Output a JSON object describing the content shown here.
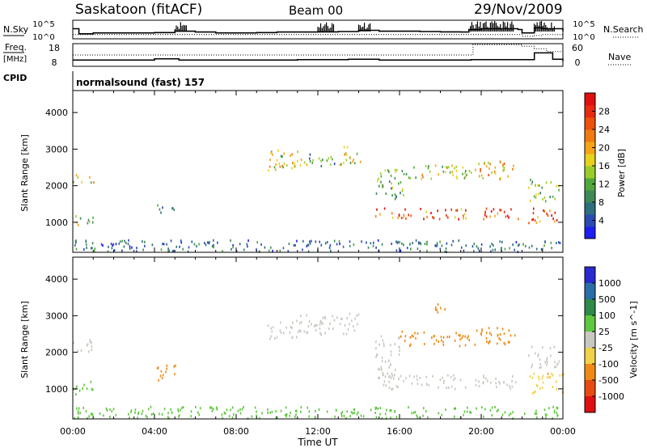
{
  "header": {
    "station": "Saskatoon (fitACF)",
    "beam": "Beam 00",
    "date": "29/Nov/2009",
    "nsky_label": "N.Sky",
    "nsearch_label": "N.Search",
    "freq_label": "Freq.",
    "freq_unit": "[MHz]",
    "nave_label": "Nave",
    "cpid_label": "CPID",
    "cpid_value": "normalsound (fast) 157"
  },
  "chart_data": [
    {
      "type": "line",
      "name": "noise panel",
      "yaxis_left": {
        "ticks": [
          "10^5",
          "10^0"
        ]
      },
      "yaxis_right": {
        "ticks": [
          "10^5",
          "10^0"
        ]
      },
      "legend": [
        "N.Sky",
        "N.Search"
      ],
      "x_hours": [
        0,
        0.3,
        1,
        2,
        3,
        4,
        5,
        6,
        7,
        8,
        9,
        10,
        11,
        12,
        13,
        14,
        15,
        16,
        17,
        18,
        19,
        19.4,
        20,
        21,
        21.8,
        22,
        22.6,
        23,
        24
      ],
      "nsky_level": [
        0.55,
        0.25,
        0.3,
        0.3,
        0.3,
        0.32,
        0.4,
        0.35,
        0.3,
        0.3,
        0.32,
        0.35,
        0.35,
        0.36,
        0.38,
        0.45,
        0.4,
        0.4,
        0.38,
        0.36,
        0.35,
        0.5,
        0.55,
        0.55,
        0.5,
        0.3,
        0.6,
        0.55,
        0.4
      ],
      "nsearch_level": [
        0.2,
        0.2,
        0.2,
        0.2,
        0.2,
        0.2,
        0.2,
        0.2,
        0.2,
        0.2,
        0.2,
        0.2,
        0.2,
        0.2,
        0.2,
        0.2,
        0.2,
        0.2,
        0.2,
        0.2,
        0.2,
        0.2,
        0.2,
        0.2,
        0.2,
        0.1,
        0.15,
        0.2,
        0.2
      ]
    },
    {
      "type": "line",
      "name": "frequency / nave panel",
      "yaxis_left": {
        "label": "Freq. [MHz]",
        "ticks": [
          18,
          8
        ],
        "range": [
          8,
          18
        ]
      },
      "yaxis_right": {
        "label": "Nave",
        "ticks": [
          60,
          0
        ],
        "range": [
          0,
          60
        ]
      },
      "freq_mhz": [
        [
          0,
          10.6
        ],
        [
          3,
          10.6
        ],
        [
          4,
          11.2
        ],
        [
          5.2,
          10.6
        ],
        [
          11,
          10.8
        ],
        [
          13.5,
          11.0
        ],
        [
          15,
          10.6
        ],
        [
          19.5,
          10.8
        ],
        [
          21.8,
          10.8
        ],
        [
          22.6,
          14.0
        ],
        [
          23.5,
          11.0
        ],
        [
          24,
          10.0
        ]
      ],
      "nave": [
        [
          0,
          30
        ],
        [
          19.5,
          30
        ],
        [
          19.6,
          60
        ],
        [
          21.8,
          60
        ],
        [
          22.0,
          55
        ],
        [
          22.6,
          48
        ],
        [
          23.2,
          40
        ],
        [
          24,
          35
        ]
      ]
    },
    {
      "type": "heatmap",
      "name": "power",
      "title": "Power [dB]",
      "xlabel": "Time UT",
      "ylabel": "Slant Range [km]",
      "xticks": [
        "00:00",
        "04:00",
        "08:00",
        "12:00",
        "16:00",
        "20:00",
        "00:00"
      ],
      "yticks": [
        1000,
        2000,
        3000,
        4000
      ],
      "xlim_hours": [
        0,
        24
      ],
      "ylim_km": [
        180,
        4600
      ],
      "colorbar": {
        "ticks": [
          4,
          8,
          12,
          16,
          20,
          24,
          28
        ],
        "range": [
          0,
          32
        ],
        "colors": [
          "#1e1ef0",
          "#2a4ab4",
          "#2e6e7e",
          "#3e8a56",
          "#50a83a",
          "#9ccc2a",
          "#e6d21c",
          "#f4a414",
          "#f27a10",
          "#ee500e",
          "#e82a10",
          "#e01010"
        ]
      },
      "echo_regions": [
        {
          "t": [
            0.0,
            1.0
          ],
          "r": [
            2080,
            2320
          ],
          "value": 18
        },
        {
          "t": [
            0.0,
            1.0
          ],
          "r": [
            900,
            1200
          ],
          "value": 16
        },
        {
          "t": [
            0.0,
            24.0
          ],
          "r": [
            200,
            520
          ],
          "value": 7
        },
        {
          "t": [
            4.0,
            5.0
          ],
          "r": [
            1250,
            1500
          ],
          "value": 9
        },
        {
          "t": [
            9.5,
            11.0
          ],
          "r": [
            2400,
            3000
          ],
          "value": 16
        },
        {
          "t": [
            10.6,
            11.6
          ],
          "r": [
            2500,
            2750
          ],
          "value": 18
        },
        {
          "t": [
            11.5,
            12.8
          ],
          "r": [
            2500,
            2900
          ],
          "value": 10
        },
        {
          "t": [
            12.9,
            14.1
          ],
          "r": [
            2600,
            3100
          ],
          "value": 16
        },
        {
          "t": [
            14.8,
            19.3
          ],
          "r": [
            1100,
            1400
          ],
          "value": 26
        },
        {
          "t": [
            14.8,
            16.2
          ],
          "r": [
            1600,
            2500
          ],
          "value": 12
        },
        {
          "t": [
            16.0,
            19.5
          ],
          "r": [
            2200,
            2600
          ],
          "value": 16
        },
        {
          "t": [
            19.6,
            21.8
          ],
          "r": [
            1100,
            1400
          ],
          "value": 27
        },
        {
          "t": [
            19.6,
            21.8
          ],
          "r": [
            2200,
            2700
          ],
          "value": 18
        },
        {
          "t": [
            22.3,
            24.0
          ],
          "r": [
            1000,
            1400
          ],
          "value": 26
        },
        {
          "t": [
            22.3,
            23.8
          ],
          "r": [
            1600,
            2200
          ],
          "value": 12
        }
      ]
    },
    {
      "type": "heatmap",
      "name": "velocity",
      "title": "Velocity [m s^-1]",
      "xlabel": "Time UT",
      "ylabel": "Slant Range [km]",
      "xticks": [
        "00:00",
        "04:00",
        "08:00",
        "12:00",
        "16:00",
        "20:00",
        "00:00"
      ],
      "yticks": [
        1000,
        2000,
        3000,
        4000
      ],
      "xlim_hours": [
        0,
        24
      ],
      "ylim_km": [
        180,
        4600
      ],
      "colorbar": {
        "ticks": [
          1000,
          500,
          100,
          25,
          -25,
          -100,
          -500,
          -1000
        ],
        "colors": [
          "#2a2ad0",
          "#2a6ea8",
          "#2e8a4a",
          "#5ec83e",
          "#c8c8c0",
          "#f0d24a",
          "#f08a14",
          "#e84a12",
          "#e01010"
        ]
      },
      "echo_regions": [
        {
          "t": [
            0.0,
            1.0
          ],
          "r": [
            2000,
            2400
          ],
          "value": 0
        },
        {
          "t": [
            0.0,
            1.0
          ],
          "r": [
            850,
            1250
          ],
          "value": 60
        },
        {
          "t": [
            0.0,
            24.0
          ],
          "r": [
            200,
            520
          ],
          "value": 60
        },
        {
          "t": [
            4.0,
            5.0
          ],
          "r": [
            1250,
            1700
          ],
          "value": -300
        },
        {
          "t": [
            9.5,
            11.0
          ],
          "r": [
            2400,
            2900
          ],
          "value": 0
        },
        {
          "t": [
            11.0,
            14.1
          ],
          "r": [
            2500,
            3100
          ],
          "value": 0
        },
        {
          "t": [
            14.8,
            19.3
          ],
          "r": [
            1000,
            1400
          ],
          "value": 0
        },
        {
          "t": [
            14.8,
            16.0
          ],
          "r": [
            1400,
            2500
          ],
          "value": 0
        },
        {
          "t": [
            16.0,
            19.5
          ],
          "r": [
            2200,
            2600
          ],
          "value": -300
        },
        {
          "t": [
            19.6,
            21.8
          ],
          "r": [
            1000,
            1400
          ],
          "value": 0
        },
        {
          "t": [
            19.6,
            21.8
          ],
          "r": [
            2200,
            2700
          ],
          "value": -300
        },
        {
          "t": [
            22.3,
            24.0
          ],
          "r": [
            900,
            1500
          ],
          "value": -80
        },
        {
          "t": [
            22.3,
            23.8
          ],
          "r": [
            1600,
            2200
          ],
          "value": 0
        },
        {
          "t": [
            17.4,
            18.2
          ],
          "r": [
            3100,
            3400
          ],
          "value": -400
        }
      ]
    }
  ]
}
